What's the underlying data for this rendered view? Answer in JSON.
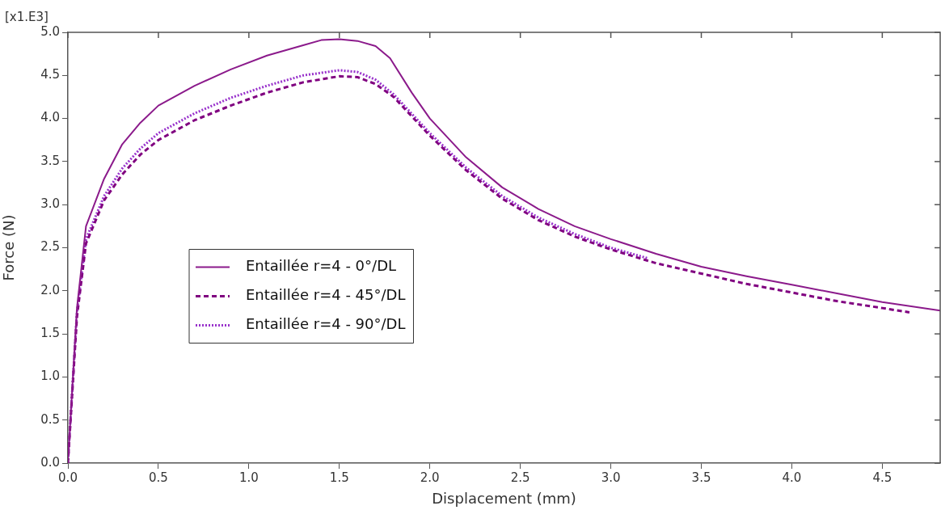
{
  "chart_data": {
    "type": "line",
    "xlabel": "Displacement (mm)",
    "ylabel": "Force (N)",
    "annotations": [
      "[x1.E3]"
    ],
    "xlim": [
      0,
      4.82
    ],
    "xticks": [
      {
        "value": 0,
        "label": "0.0"
      },
      {
        "value": 0.5,
        "label": "0.5"
      },
      {
        "value": 1,
        "label": "1.0"
      },
      {
        "value": 1.5,
        "label": "1.5"
      },
      {
        "value": 2,
        "label": "2.0"
      },
      {
        "value": 2.5,
        "label": "2.5"
      },
      {
        "value": 3,
        "label": "3.0"
      },
      {
        "value": 3.5,
        "label": "3.5"
      },
      {
        "value": 4,
        "label": "4.0"
      },
      {
        "value": 4.5,
        "label": "4.5"
      }
    ],
    "ylim": [
      0,
      5
    ],
    "yticks": [
      {
        "value": 0,
        "label": "0.0"
      },
      {
        "value": 0.5,
        "label": "0.5"
      },
      {
        "value": 1,
        "label": "1.0"
      },
      {
        "value": 1.5,
        "label": "1.5"
      },
      {
        "value": 2,
        "label": "2.0"
      },
      {
        "value": 2.5,
        "label": "2.5"
      },
      {
        "value": 3,
        "label": "3.0"
      },
      {
        "value": 3.5,
        "label": "3.5"
      },
      {
        "value": 4,
        "label": "4.0"
      },
      {
        "value": 4.5,
        "label": "4.5"
      },
      {
        "value": 5,
        "label": "5.0"
      }
    ],
    "grid": false,
    "legend": "left",
    "marker": "none",
    "series": [
      {
        "name": "Entaillée r=4 - 0°/DL",
        "color": "#8b1a8b",
        "line_style": "solid",
        "x": [
          0,
          0.05,
          0.1,
          0.2,
          0.3,
          0.4,
          0.5,
          0.7,
          0.9,
          1.1,
          1.3,
          1.4,
          1.5,
          1.6,
          1.7,
          1.78,
          1.9,
          2.0,
          2.2,
          2.4,
          2.6,
          2.8,
          3.0,
          3.25,
          3.5,
          3.75,
          4.0,
          4.25,
          4.5,
          4.82
        ],
        "values": [
          0,
          1.8,
          2.75,
          3.3,
          3.7,
          3.95,
          4.15,
          4.38,
          4.57,
          4.73,
          4.85,
          4.91,
          4.92,
          4.9,
          4.84,
          4.7,
          4.3,
          4.0,
          3.55,
          3.2,
          2.95,
          2.75,
          2.6,
          2.43,
          2.28,
          2.17,
          2.07,
          1.97,
          1.87,
          1.77
        ]
      },
      {
        "name": "Entaillée r=4 - 45°/DL",
        "color": "#800080",
        "line_style": "dashed",
        "x": [
          0,
          0.05,
          0.1,
          0.2,
          0.3,
          0.4,
          0.5,
          0.7,
          0.9,
          1.1,
          1.3,
          1.5,
          1.6,
          1.7,
          1.8,
          2.0,
          2.2,
          2.4,
          2.6,
          2.8,
          3.0,
          3.25,
          3.5,
          3.75,
          4.0,
          4.25,
          4.5,
          4.65
        ],
        "values": [
          0,
          1.7,
          2.55,
          3.05,
          3.35,
          3.58,
          3.75,
          3.98,
          4.15,
          4.3,
          4.42,
          4.49,
          4.48,
          4.4,
          4.25,
          3.8,
          3.4,
          3.07,
          2.82,
          2.63,
          2.48,
          2.32,
          2.2,
          2.08,
          1.98,
          1.88,
          1.8,
          1.75
        ]
      },
      {
        "name": "Entaillée r=4 - 90°/DL",
        "color": "#9932cc",
        "line_style": "dotted",
        "x": [
          0,
          0.05,
          0.1,
          0.2,
          0.3,
          0.4,
          0.5,
          0.7,
          0.9,
          1.1,
          1.3,
          1.5,
          1.6,
          1.7,
          1.8,
          2.0,
          2.2,
          2.4,
          2.6,
          2.8,
          3.0,
          3.2
        ],
        "values": [
          0,
          1.75,
          2.6,
          3.1,
          3.42,
          3.65,
          3.83,
          4.06,
          4.24,
          4.38,
          4.5,
          4.56,
          4.54,
          4.45,
          4.28,
          3.83,
          3.43,
          3.1,
          2.85,
          2.66,
          2.5,
          2.38
        ]
      }
    ]
  }
}
